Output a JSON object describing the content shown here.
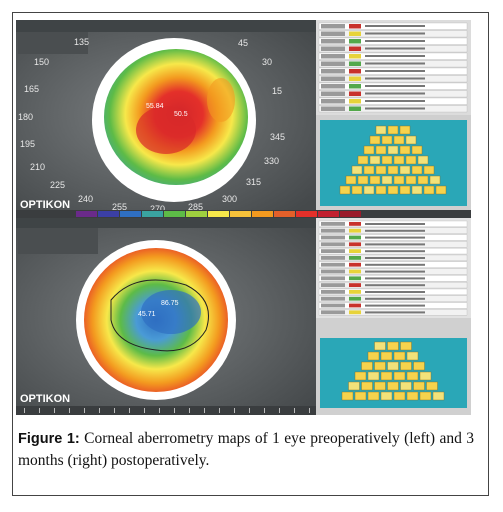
{
  "caption": {
    "label": "Figure 1:",
    "text": " Corneal aberrometry maps of 1 eye preoperatively (left) and 3 months (right) postoperatively."
  },
  "top_map": {
    "brand": "OPTIKON",
    "angles": [
      "135",
      "150",
      "165",
      "180",
      "195",
      "210",
      "225",
      "240",
      "255",
      "270",
      "285",
      "300",
      "315",
      "330",
      "345",
      "15",
      "30",
      "45"
    ],
    "center_labels": [
      "55.84",
      "50.5"
    ]
  },
  "bottom_map": {
    "brand": "OPTIKON",
    "center_labels": [
      "86.75",
      "45.71"
    ]
  },
  "colors": {
    "red": "#e4302a",
    "orange": "#f39a1f",
    "yellow": "#f7e84a",
    "green": "#5dbb47",
    "teal": "#3aa3a0",
    "blue": "#2f6fc2",
    "bg_gray": "#5b5e60"
  }
}
